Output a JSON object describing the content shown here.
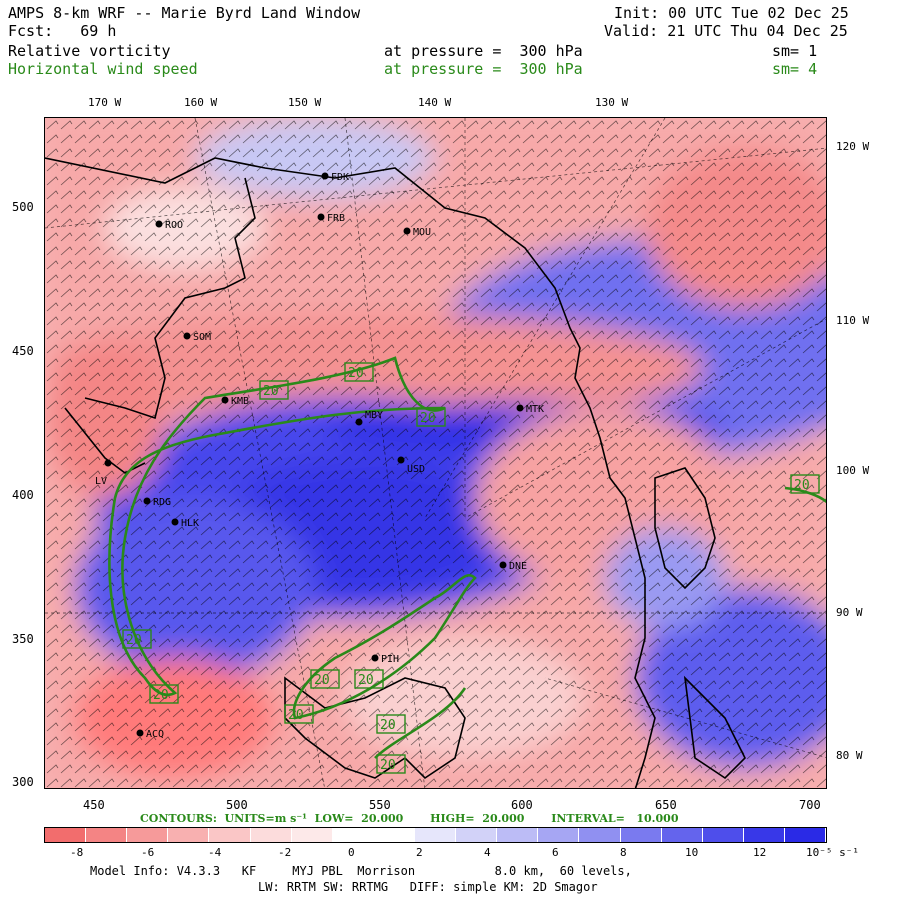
{
  "header": {
    "title": "AMPS 8-km WRF -- Marie Byrd Land Window",
    "forecast": "Fcst:   69 h",
    "init": "Init: 00 UTC Tue 02 Dec 25",
    "valid": "Valid: 21 UTC Thu 04 Dec 25",
    "field1": {
      "name": "Relative vorticity",
      "level": "at pressure =  300 hPa",
      "sm": "sm= 1"
    },
    "field2": {
      "name": "Horizontal wind speed",
      "level": "at pressure =  300 hPa",
      "sm": "sm= 4"
    }
  },
  "map": {
    "lon_top_labels": [
      "170 W",
      "160 W",
      "150 W",
      "140 W",
      "130 W"
    ],
    "lat_right_labels": [
      "120 W",
      "110 W",
      "100 W",
      "90 W",
      "80 W"
    ],
    "y_ticks": [
      "500",
      "450",
      "400",
      "350",
      "300"
    ],
    "x_ticks": [
      "450",
      "500",
      "550",
      "600",
      "650",
      "700"
    ],
    "stations": [
      {
        "id": "ROO"
      },
      {
        "id": "FDK"
      },
      {
        "id": "FRB"
      },
      {
        "id": "MOU"
      },
      {
        "id": "SOM"
      },
      {
        "id": "KMB"
      },
      {
        "id": "MBY"
      },
      {
        "id": "MTK"
      },
      {
        "id": "LV"
      },
      {
        "id": "USD"
      },
      {
        "id": "RDG"
      },
      {
        "id": "HLK"
      },
      {
        "id": "DNE"
      },
      {
        "id": "PIH"
      },
      {
        "id": "ACQ"
      }
    ],
    "contour_labels": [
      "20",
      "20",
      "20",
      "20",
      "20",
      "20",
      "20",
      "20",
      "20",
      "20",
      "20",
      "20"
    ],
    "colors": {
      "negative": "#f26b6b",
      "positive": "#3a3aee",
      "contour": "#2a8a1a",
      "land": "#000000"
    }
  },
  "contours_info": "CONTOURS:  UNITS=m s⁻¹  LOW=  20.000       HIGH=  20.000       INTERVAL=   10.000",
  "colorbar": {
    "ticks": [
      "-8",
      "-6",
      "-4",
      "-2",
      "0",
      "2",
      "4",
      "6",
      "8",
      "10",
      "12"
    ],
    "units": "10⁻⁵ s⁻¹",
    "colors": [
      "#f26d6d",
      "#f48484",
      "#f69a9a",
      "#f8b0b0",
      "#fac6c6",
      "#fcdcdc",
      "#fde9e9",
      "#ffffff",
      "#ffffff",
      "#e6e6fb",
      "#d2d2f8",
      "#bcbcf6",
      "#a6a6f3",
      "#9090f1",
      "#7a7aef",
      "#6464ed",
      "#4e4eeb",
      "#3838e8",
      "#2a2ae6"
    ]
  },
  "footer": {
    "line1": "Model Info: V4.3.3   KF     MYJ PBL  Morrison           8.0 km,  60 levels,",
    "line2": "LW: RRTM SW: RRTMG   DIFF: simple KM: 2D Smagor"
  }
}
